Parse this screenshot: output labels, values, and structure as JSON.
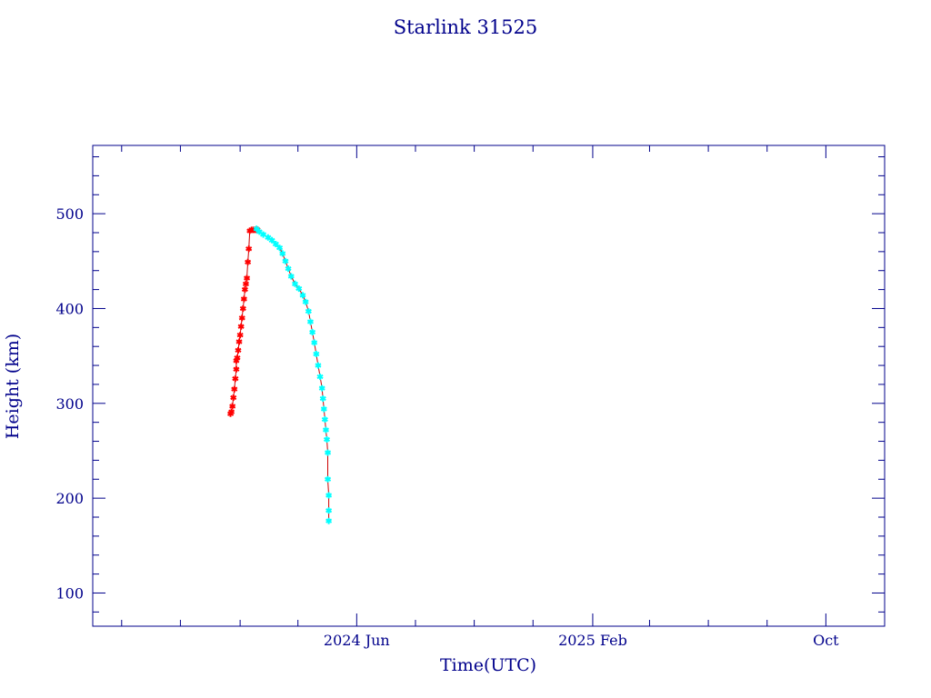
{
  "chart_data": {
    "type": "scatter",
    "title": "Starlink 31525",
    "xlabel": "Time(UTC)",
    "ylabel": "Height (km)",
    "x_axis": {
      "unit": "date",
      "range": [
        "2023-09-01",
        "2025-12-01"
      ],
      "tick_labels": [
        {
          "date": "2024-06-01",
          "label": "2024 Jun"
        },
        {
          "date": "2025-02-01",
          "label": "2025 Feb"
        },
        {
          "date": "2025-10-01",
          "label": "Oct"
        }
      ],
      "minor_tick_dates": [
        "2023-10-01",
        "2023-12-01",
        "2024-02-01",
        "2024-04-01",
        "2024-08-01",
        "2024-10-01",
        "2024-12-01",
        "2025-04-01",
        "2025-06-01",
        "2025-08-01"
      ]
    },
    "y_axis": {
      "range": [
        65,
        572
      ],
      "major_ticks": [
        100,
        200,
        300,
        400,
        500
      ],
      "minor_step": 20
    },
    "grid": false,
    "series": [
      {
        "marker": "star",
        "color": "#ff0000",
        "points": [
          [
            "2024-01-22",
            289
          ],
          [
            "2024-01-23",
            291
          ],
          [
            "2024-01-24",
            297
          ],
          [
            "2024-01-25",
            306
          ],
          [
            "2024-01-26",
            315
          ],
          [
            "2024-01-27",
            326
          ],
          [
            "2024-01-28",
            336
          ],
          [
            "2024-01-28",
            345
          ],
          [
            "2024-01-29",
            348
          ],
          [
            "2024-01-30",
            356
          ],
          [
            "2024-01-31",
            365
          ],
          [
            "2024-02-01",
            372
          ],
          [
            "2024-02-02",
            381
          ],
          [
            "2024-02-03",
            390
          ],
          [
            "2024-02-04",
            400
          ],
          [
            "2024-02-05",
            410
          ],
          [
            "2024-02-06",
            420
          ],
          [
            "2024-02-07",
            426
          ],
          [
            "2024-02-08",
            432
          ],
          [
            "2024-02-09",
            449
          ],
          [
            "2024-02-10",
            463
          ],
          [
            "2024-02-11",
            482
          ],
          [
            "2024-02-13",
            483
          ],
          [
            "2024-02-15",
            483
          ],
          [
            "2024-02-17",
            483
          ],
          [
            "2024-02-19",
            483
          ]
        ]
      },
      {
        "marker": "star",
        "color": "#00ffff",
        "points": [
          [
            "2024-02-18",
            484
          ],
          [
            "2024-02-21",
            481
          ],
          [
            "2024-02-25",
            478
          ],
          [
            "2024-03-01",
            475
          ],
          [
            "2024-03-05",
            472
          ],
          [
            "2024-03-09",
            468
          ],
          [
            "2024-03-13",
            464
          ],
          [
            "2024-03-16",
            458
          ],
          [
            "2024-03-19",
            450
          ],
          [
            "2024-03-22",
            442
          ],
          [
            "2024-03-25",
            434
          ],
          [
            "2024-03-29",
            426
          ],
          [
            "2024-04-02",
            421
          ],
          [
            "2024-04-06",
            414
          ],
          [
            "2024-04-09",
            407
          ],
          [
            "2024-04-12",
            397
          ],
          [
            "2024-04-14",
            386
          ],
          [
            "2024-04-16",
            375
          ],
          [
            "2024-04-18",
            364
          ],
          [
            "2024-04-20",
            352
          ],
          [
            "2024-04-22",
            340
          ],
          [
            "2024-04-24",
            328
          ],
          [
            "2024-04-26",
            316
          ],
          [
            "2024-04-27",
            305
          ],
          [
            "2024-04-28",
            294
          ],
          [
            "2024-04-29",
            283
          ],
          [
            "2024-04-30",
            272
          ],
          [
            "2024-05-01",
            262
          ],
          [
            "2024-05-02",
            248
          ],
          [
            "2024-05-02",
            220
          ],
          [
            "2024-05-03",
            203
          ],
          [
            "2024-05-03",
            187
          ],
          [
            "2024-05-03",
            176
          ]
        ]
      }
    ]
  }
}
